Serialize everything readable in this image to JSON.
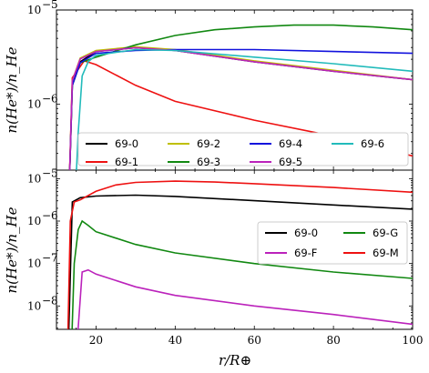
{
  "chart_data": [
    {
      "type": "line",
      "panel": "top",
      "ylabel": "n(He*)/n_He",
      "xlim": [
        10,
        100
      ],
      "ylim_log10": [
        -6.7,
        -5
      ],
      "y_scale": "log",
      "y_tick_labels": [
        "10",
        "10"
      ],
      "y_tick_exps": [
        "−5",
        "−6"
      ],
      "legend": {
        "placement": "lower-right",
        "columns": 4
      },
      "series": [
        {
          "name": "69-0",
          "color": "#000000",
          "x": [
            13,
            14,
            16,
            20,
            30,
            40,
            60,
            80,
            100
          ],
          "log10y": [
            -7.2,
            -5.8,
            -5.55,
            -5.44,
            -5.4,
            -5.43,
            -5.55,
            -5.65,
            -5.74
          ]
        },
        {
          "name": "69-1",
          "color": "#ee1111",
          "x": [
            13,
            14,
            17,
            20,
            30,
            40,
            60,
            80,
            100
          ],
          "log10y": [
            -7.2,
            -5.72,
            -5.54,
            -5.58,
            -5.8,
            -5.97,
            -6.17,
            -6.34,
            -6.55
          ]
        },
        {
          "name": "69-2",
          "color": "#bfbf00",
          "x": [
            13,
            14,
            16,
            20,
            30,
            40,
            60,
            80,
            100
          ],
          "log10y": [
            -7.2,
            -5.75,
            -5.51,
            -5.43,
            -5.39,
            -5.42,
            -5.54,
            -5.64,
            -5.74
          ]
        },
        {
          "name": "69-3",
          "color": "#118811",
          "x": [
            13,
            14,
            16,
            20,
            30,
            40,
            50,
            60,
            70,
            80,
            90,
            100
          ],
          "log10y": [
            -7.2,
            -5.8,
            -5.56,
            -5.5,
            -5.37,
            -5.27,
            -5.21,
            -5.18,
            -5.16,
            -5.16,
            -5.18,
            -5.21
          ]
        },
        {
          "name": "69-4",
          "color": "#1111dd",
          "x": [
            13,
            14,
            16,
            20,
            30,
            40,
            60,
            80,
            100
          ],
          "log10y": [
            -7.2,
            -5.8,
            -5.56,
            -5.46,
            -5.43,
            -5.42,
            -5.42,
            -5.44,
            -5.46
          ]
        },
        {
          "name": "69-5",
          "color": "#bb22bb",
          "x": [
            13,
            14,
            16,
            20,
            30,
            40,
            60,
            80,
            100
          ],
          "log10y": [
            -7.2,
            -5.75,
            -5.52,
            -5.44,
            -5.4,
            -5.43,
            -5.55,
            -5.65,
            -5.74
          ]
        },
        {
          "name": "69-6",
          "color": "#22bbbb",
          "x": [
            14.5,
            15.5,
            16.5,
            18,
            20,
            30,
            40,
            60,
            80,
            100
          ],
          "log10y": [
            -7.2,
            -6.3,
            -5.7,
            -5.55,
            -5.48,
            -5.42,
            -5.43,
            -5.5,
            -5.57,
            -5.65
          ]
        }
      ]
    },
    {
      "type": "line",
      "panel": "bottom",
      "xlabel": "r/R⊕",
      "ylabel": "n(He*)/n_He",
      "xlim": [
        10,
        100
      ],
      "ylim_log10": [
        -8.55,
        -4.8
      ],
      "y_scale": "log",
      "x_ticks": [
        "20",
        "40",
        "60",
        "80",
        "100"
      ],
      "y_tick_labels": [
        "10",
        "10",
        "10",
        "10"
      ],
      "y_tick_exps": [
        "−5",
        "−6",
        "−7",
        "−8"
      ],
      "legend": {
        "placement": "right",
        "columns": 2
      },
      "series": [
        {
          "name": "69-0",
          "color": "#000000",
          "x": [
            13,
            14,
            16,
            20,
            30,
            40,
            60,
            80,
            100
          ],
          "log10y": [
            -9,
            -5.55,
            -5.45,
            -5.41,
            -5.39,
            -5.42,
            -5.52,
            -5.62,
            -5.72
          ]
        },
        {
          "name": "69-F",
          "color": "#bb22bb",
          "x": [
            14.8,
            15.5,
            16.5,
            18,
            20,
            30,
            40,
            60,
            80,
            100
          ],
          "log10y": [
            -9,
            -8.5,
            -7.2,
            -7.15,
            -7.25,
            -7.55,
            -7.75,
            -8.0,
            -8.2,
            -8.43
          ]
        },
        {
          "name": "69-G",
          "color": "#118811",
          "x": [
            13.8,
            14.5,
            15.5,
            16.5,
            18,
            20,
            30,
            40,
            60,
            80,
            100
          ],
          "log10y": [
            -9,
            -7.0,
            -6.2,
            -6.0,
            -6.1,
            -6.25,
            -6.55,
            -6.75,
            -7.0,
            -7.2,
            -7.35
          ]
        },
        {
          "name": "69-M",
          "color": "#ee1111",
          "x": [
            12.8,
            13.5,
            14.5,
            16,
            20,
            25,
            30,
            40,
            50,
            60,
            80,
            100
          ],
          "log10y": [
            -9,
            -6.0,
            -5.55,
            -5.5,
            -5.3,
            -5.15,
            -5.09,
            -5.06,
            -5.08,
            -5.12,
            -5.21,
            -5.32
          ]
        }
      ]
    }
  ]
}
